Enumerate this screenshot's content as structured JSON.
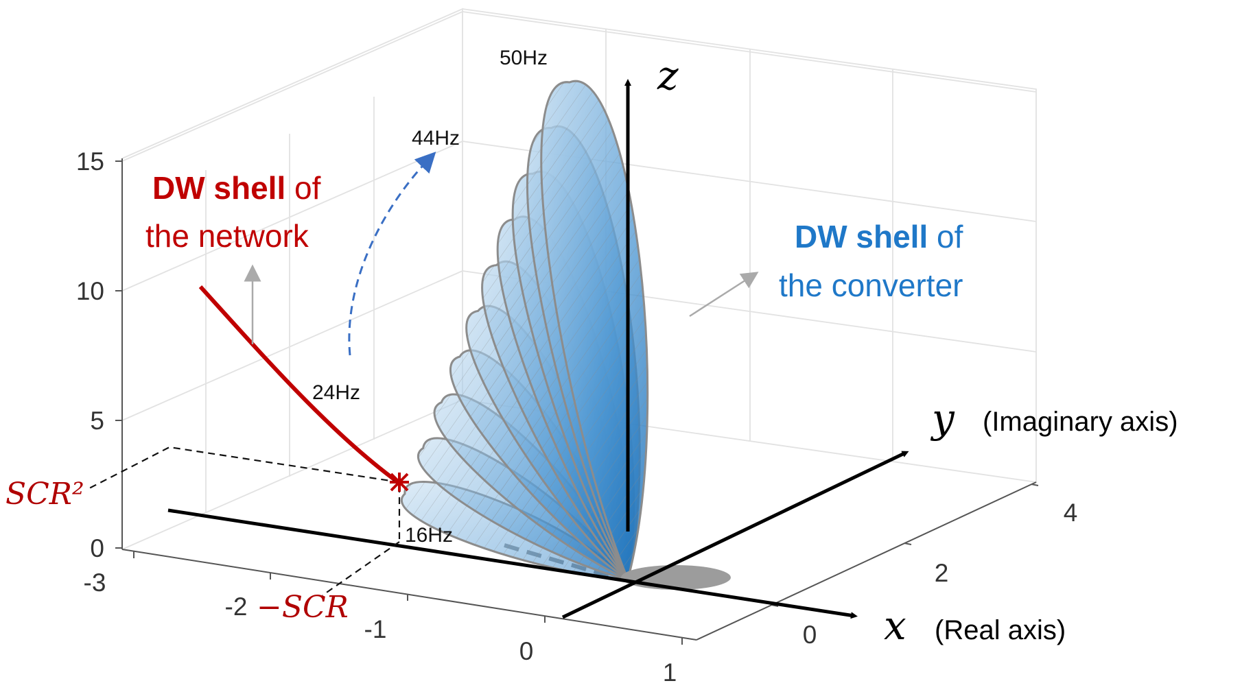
{
  "chart_data": {
    "type": "surface3d",
    "axes": {
      "x": {
        "letter": "x",
        "label": "(Real axis)",
        "ticks": [
          "-3",
          "-2",
          "-1",
          "0",
          "1"
        ],
        "range": [
          -3,
          1
        ]
      },
      "y": {
        "letter": "y",
        "label": "(Imaginary axis)",
        "ticks": [
          "0",
          "2",
          "4"
        ],
        "range": [
          -1,
          4.5
        ]
      },
      "z": {
        "letter": "z",
        "label": "",
        "ticks": [
          "0",
          "5",
          "10",
          "15"
        ],
        "range": [
          0,
          16
        ]
      }
    },
    "grid": true,
    "converter_shell": {
      "label_bold": "DW shell",
      "label_rest": "of",
      "label_line2": "the converter",
      "color": "#1f78c8",
      "frequency_labels": [
        "50Hz",
        "44Hz",
        "24Hz",
        "16Hz"
      ],
      "sweep_from": "24Hz",
      "sweep_to": "44Hz"
    },
    "network_shell": {
      "label_bold": "DW shell",
      "label_rest": "of",
      "label_line2": "the network",
      "color": "#c00000"
    },
    "markers": {
      "scr_squared": "SCR²",
      "minus_scr": "−SCR"
    }
  }
}
